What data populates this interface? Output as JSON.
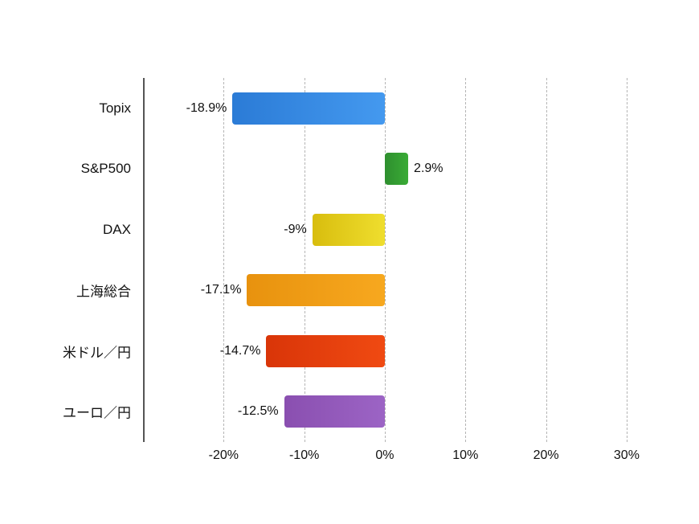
{
  "chart_data": {
    "type": "bar",
    "orientation": "horizontal",
    "title": "",
    "xlabel": "",
    "ylabel": "",
    "xlim": [
      -30,
      32
    ],
    "grid": "dashed-vertical",
    "legend": "none",
    "categories": [
      "Topix",
      "S&P500",
      "DAX",
      "上海総合",
      "米ドル／円",
      "ユーロ／円"
    ],
    "values": [
      -18.9,
      2.9,
      -9,
      -17.1,
      -14.7,
      -12.5
    ],
    "value_labels": [
      "-18.9%",
      "2.9%",
      "-9%",
      "-17.1%",
      "-14.7%",
      "-12.5%"
    ],
    "bar_colors": [
      {
        "start": "#2b7bd6",
        "end": "#4499ef"
      },
      {
        "start": "#2e8f2e",
        "end": "#3aab36"
      },
      {
        "start": "#d8bd0e",
        "end": "#efde2e"
      },
      {
        "start": "#e8920e",
        "end": "#f7a81f"
      },
      {
        "start": "#d93508",
        "end": "#f04a12"
      },
      {
        "start": "#8a4fb0",
        "end": "#9c64c5"
      }
    ],
    "x_ticks": [
      -20,
      -10,
      0,
      10,
      20,
      30
    ],
    "x_tick_labels": [
      "-20%",
      "-10%",
      "0%",
      "10%",
      "20%",
      "30%"
    ]
  }
}
